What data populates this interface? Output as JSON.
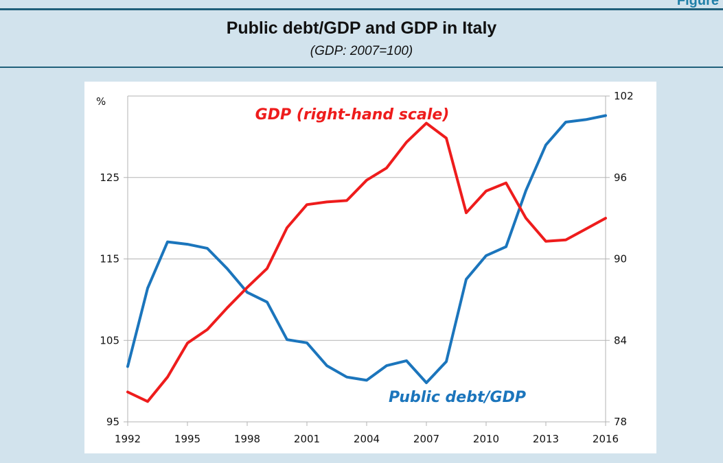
{
  "corner_label": "Figure",
  "title": "Public debt/GDP and GDP in Italy",
  "subtitle": "(GDP: 2007=100)",
  "colors": {
    "debt": "#1b75bc",
    "gdp": "#ee1c1c",
    "grid": "#b3b3b3"
  },
  "chart_data": {
    "type": "line",
    "x": [
      1992,
      1993,
      1994,
      1995,
      1996,
      1997,
      1998,
      1999,
      2000,
      2001,
      2002,
      2003,
      2004,
      2005,
      2006,
      2007,
      2008,
      2009,
      2010,
      2011,
      2012,
      2013,
      2014,
      2015,
      2016
    ],
    "x_ticks": [
      "1992",
      "1995",
      "1998",
      "2001",
      "2004",
      "2007",
      "2010",
      "2013",
      "2016"
    ],
    "left_axis": {
      "unit_label": "%",
      "ylim": [
        95,
        135
      ],
      "ticks": [
        "95",
        "105",
        "115",
        "125"
      ]
    },
    "right_axis": {
      "ylim": [
        78,
        102
      ],
      "ticks": [
        "78",
        "84",
        "90",
        "96",
        "102"
      ]
    },
    "series": [
      {
        "name": "Public debt/GDP",
        "axis": "left",
        "values": [
          101.8,
          111.4,
          117.1,
          116.8,
          116.3,
          113.8,
          110.9,
          109.7,
          105.1,
          104.7,
          101.9,
          100.5,
          100.1,
          101.9,
          102.5,
          99.8,
          102.4,
          112.5,
          115.4,
          116.5,
          123.4,
          129.0,
          131.8,
          132.1,
          132.6
        ]
      },
      {
        "name": "GDP (right-hand scale)",
        "axis": "right",
        "values": [
          80.2,
          79.5,
          81.3,
          83.8,
          84.8,
          86.4,
          87.9,
          89.3,
          92.3,
          94.0,
          94.2,
          94.3,
          95.8,
          96.7,
          98.6,
          100.0,
          98.9,
          93.4,
          95.0,
          95.6,
          93.0,
          91.3,
          91.4,
          92.2,
          93.0
        ]
      }
    ]
  }
}
